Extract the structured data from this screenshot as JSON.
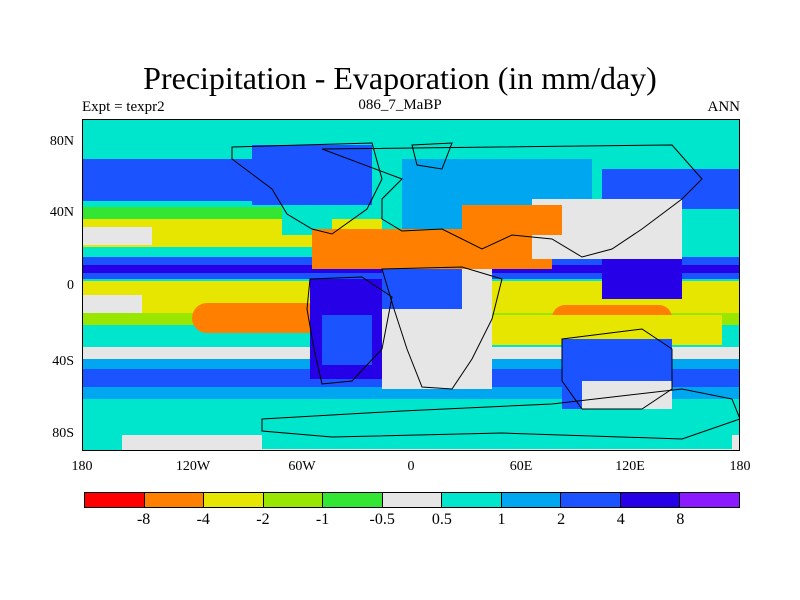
{
  "title": "Precipitation - Evaporation (in mm/day)",
  "subtitle_left": "Expt = texpr2",
  "subtitle_center": "086_7_MaBP",
  "subtitle_right": "ANN",
  "y_ticks": [
    "80N",
    "40N",
    "0",
    "40S",
    "80S"
  ],
  "x_ticks": [
    "180",
    "120W",
    "60W",
    "0",
    "60E",
    "120E",
    "180"
  ],
  "legend": {
    "colors": [
      "#ff0000",
      "#ff8000",
      "#e6e600",
      "#99e600",
      "#33e633",
      "#e6e6e6",
      "#00e6cc",
      "#00a6f0",
      "#1a53ff",
      "#2600e6",
      "#8c1aff"
    ],
    "labels": [
      "-8",
      "-4",
      "-2",
      "-1",
      "-0.5",
      "0.5",
      "1",
      "2",
      "4",
      "8"
    ]
  },
  "chart_data": {
    "type": "heatmap",
    "title": "Precipitation - Evaporation (in mm/day)",
    "xlim": [
      -180,
      180
    ],
    "ylim": [
      -90,
      90
    ],
    "levels": [
      -8,
      -4,
      -2,
      -1,
      -0.5,
      0.5,
      1,
      2,
      4,
      8
    ]
  }
}
